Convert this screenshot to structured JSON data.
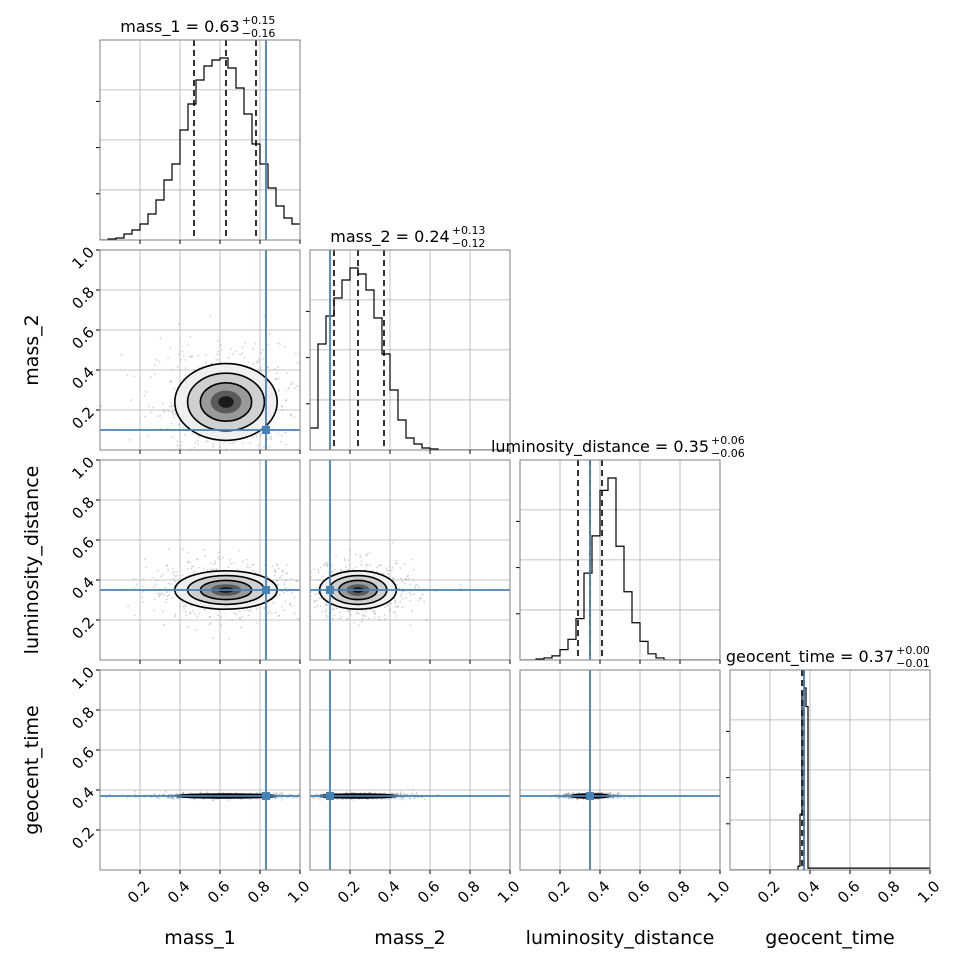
{
  "chart_data": {
    "type": "corner",
    "parameters": [
      {
        "name": "mass_1",
        "range": [
          0,
          1
        ],
        "ticks": [
          0.2,
          0.4,
          0.6,
          0.8,
          1.0
        ],
        "truth": 0.83,
        "median": 0.63,
        "q_lo": 0.47,
        "q_hi": 0.78,
        "title": {
          "prefix": "mass_1 = 0.63",
          "plus": "+0.15",
          "minus": "−0.16"
        }
      },
      {
        "name": "mass_2",
        "range": [
          0,
          1
        ],
        "ticks": [
          0.2,
          0.4,
          0.6,
          0.8,
          1.0
        ],
        "truth": 0.1,
        "median": 0.24,
        "q_lo": 0.12,
        "q_hi": 0.37,
        "title": {
          "prefix": "mass_2 = 0.24",
          "plus": "+0.13",
          "minus": "−0.12"
        }
      },
      {
        "name": "luminosity_distance",
        "range": [
          0,
          1
        ],
        "ticks": [
          0.2,
          0.4,
          0.6,
          0.8,
          1.0
        ],
        "truth": 0.35,
        "median": 0.35,
        "q_lo": 0.29,
        "q_hi": 0.41,
        "title": {
          "prefix": "luminosity_distance = 0.35",
          "plus": "+0.06",
          "minus": "−0.06"
        }
      },
      {
        "name": "geocent_time",
        "range": [
          0,
          1
        ],
        "ticks": [
          0.2,
          0.4,
          0.6,
          0.8,
          1.0
        ],
        "truth": 0.37,
        "median": 0.37,
        "q_lo": 0.36,
        "q_hi": 0.37,
        "title": {
          "prefix": "geocent_time = 0.37",
          "plus": "+0.00",
          "minus": "−0.01"
        }
      }
    ],
    "y_ticks": [
      0.2,
      0.4,
      0.6,
      0.8,
      1.0
    ],
    "histograms": [
      {
        "bins": [
          0.0,
          0.04,
          0.08,
          0.12,
          0.16,
          0.2,
          0.24,
          0.28,
          0.32,
          0.36,
          0.4,
          0.44,
          0.48,
          0.52,
          0.56,
          0.6,
          0.64,
          0.68,
          0.72,
          0.76,
          0.8,
          0.84,
          0.88,
          0.92,
          0.96,
          1.0
        ],
        "counts": [
          0,
          0.005,
          0.01,
          0.03,
          0.05,
          0.08,
          0.13,
          0.2,
          0.3,
          0.38,
          0.55,
          0.68,
          0.8,
          0.87,
          0.9,
          0.91,
          0.86,
          0.76,
          0.63,
          0.48,
          0.38,
          0.26,
          0.17,
          0.11,
          0.08
        ]
      },
      {
        "bins": [
          0.0,
          0.04,
          0.08,
          0.12,
          0.16,
          0.2,
          0.24,
          0.28,
          0.32,
          0.36,
          0.4,
          0.44,
          0.48,
          0.52,
          0.56,
          0.6,
          0.64,
          0.68,
          0.72,
          0.76,
          0.8,
          0.84,
          0.88,
          0.92,
          0.96,
          1.0
        ],
        "counts": [
          0.11,
          0.53,
          0.67,
          0.76,
          0.85,
          0.91,
          0.88,
          0.8,
          0.66,
          0.48,
          0.3,
          0.15,
          0.06,
          0.03,
          0.01,
          0.005,
          0,
          0,
          0,
          0,
          0,
          0,
          0,
          0,
          0
        ]
      },
      {
        "bins": [
          0.0,
          0.04,
          0.08,
          0.12,
          0.16,
          0.2,
          0.24,
          0.28,
          0.32,
          0.36,
          0.4,
          0.44,
          0.48,
          0.52,
          0.56,
          0.6,
          0.64,
          0.68,
          0.72,
          0.76,
          0.8,
          0.84,
          0.88,
          0.92,
          0.96,
          1.0
        ],
        "counts": [
          0,
          0,
          0.005,
          0.01,
          0.02,
          0.05,
          0.1,
          0.2,
          0.42,
          0.6,
          0.82,
          0.88,
          0.55,
          0.33,
          0.18,
          0.09,
          0.03,
          0.01,
          0,
          0,
          0,
          0,
          0,
          0,
          0
        ]
      },
      {
        "bins": [
          0.0,
          0.34,
          0.35,
          0.36,
          0.37,
          0.38,
          0.39,
          1.0
        ],
        "counts": [
          0,
          0.02,
          0.3,
          0.95,
          0.98,
          0.88,
          0.01
        ]
      }
    ],
    "contours_2d": [
      {
        "x": "mass_1",
        "y": "mass_2",
        "cx": 0.63,
        "cy": 0.24,
        "sx": 0.16,
        "sy": 0.12
      },
      {
        "x": "mass_1",
        "y": "luminosity_distance",
        "cx": 0.63,
        "cy": 0.35,
        "sx": 0.16,
        "sy": 0.06
      },
      {
        "x": "mass_2",
        "y": "luminosity_distance",
        "cx": 0.24,
        "cy": 0.35,
        "sx": 0.12,
        "sy": 0.06
      },
      {
        "x": "mass_1",
        "y": "geocent_time",
        "cx": 0.63,
        "cy": 0.37,
        "sx": 0.16,
        "sy": 0.006
      },
      {
        "x": "mass_2",
        "y": "geocent_time",
        "cx": 0.24,
        "cy": 0.37,
        "sx": 0.12,
        "sy": 0.006
      },
      {
        "x": "luminosity_distance",
        "y": "geocent_time",
        "cx": 0.35,
        "cy": 0.37,
        "sx": 0.06,
        "sy": 0.006
      }
    ],
    "grid": true,
    "colors": {
      "truth": "#4682b4",
      "hist": "#000000",
      "grid": "#b0b0b0",
      "frame": "#808080"
    }
  }
}
